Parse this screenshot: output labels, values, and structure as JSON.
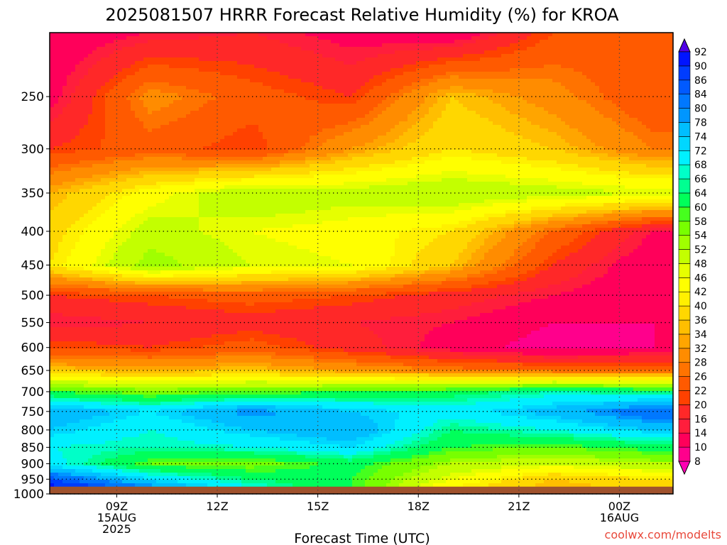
{
  "chart_data": {
    "type": "heatmap",
    "title": "2025081507 HRRR Forecast Relative Humidity (%) for KROA",
    "xlabel": "Forecast Time (UTC)",
    "ylabel": "",
    "credit": "coolwx.com/modelts",
    "x_unit": "hours UTC, 15AUG2025",
    "xlim": [
      7,
      25.6
    ],
    "y_scale": "log",
    "ylim": [
      1000,
      200
    ],
    "y_ticks": [
      250,
      300,
      350,
      400,
      450,
      500,
      550,
      600,
      650,
      700,
      750,
      800,
      850,
      900,
      950,
      1000
    ],
    "x_ticks": [
      {
        "hour": 9,
        "lines": [
          "09Z",
          "15AUG",
          "2025"
        ]
      },
      {
        "hour": 12,
        "lines": [
          "12Z"
        ]
      },
      {
        "hour": 15,
        "lines": [
          "15Z"
        ]
      },
      {
        "hour": 18,
        "lines": [
          "18Z"
        ]
      },
      {
        "hour": 21,
        "lines": [
          "21Z"
        ]
      },
      {
        "hour": 24,
        "lines": [
          "00Z",
          "16AUG"
        ]
      }
    ],
    "grid": true,
    "ground_below_hpa": 975,
    "ground_color": "#a0522d",
    "colorbar": {
      "placement": "right",
      "levels": [
        8,
        10,
        14,
        16,
        20,
        22,
        26,
        28,
        32,
        34,
        36,
        40,
        42,
        46,
        48,
        52,
        54,
        58,
        60,
        64,
        66,
        68,
        72,
        74,
        78,
        80,
        84,
        86,
        90,
        92
      ],
      "colors": [
        "#ff00b4",
        "#ff008c",
        "#ff005a",
        "#ff1e3c",
        "#ff2828",
        "#ff4100",
        "#ff5a00",
        "#ff7300",
        "#ff8c00",
        "#ffa500",
        "#ffbe00",
        "#ffd700",
        "#fff000",
        "#ffff00",
        "#e6ff00",
        "#c3ff00",
        "#a0ff00",
        "#78ff00",
        "#46ff1e",
        "#00ff5a",
        "#00ff91",
        "#00ffc8",
        "#00f0ff",
        "#00d7ff",
        "#00beff",
        "#0096ff",
        "#0078ff",
        "#005aff",
        "#003cff",
        "#0014ff",
        "#5000e6"
      ]
    },
    "rh_profiles": {
      "hours": [
        7,
        10,
        13,
        16,
        19,
        22,
        25
      ],
      "pressures": [
        200,
        250,
        300,
        350,
        400,
        450,
        500,
        550,
        600,
        650,
        700,
        750,
        800,
        850,
        900,
        950,
        975
      ],
      "rh": [
        [
          10,
          14,
          16,
          12,
          10,
          22,
          26
        ],
        [
          12,
          30,
          24,
          20,
          36,
          30,
          22
        ],
        [
          20,
          24,
          20,
          32,
          40,
          36,
          28
        ],
        [
          34,
          44,
          52,
          50,
          52,
          50,
          48
        ],
        [
          38,
          50,
          46,
          44,
          40,
          26,
          14
        ],
        [
          40,
          54,
          48,
          46,
          36,
          20,
          10
        ],
        [
          20,
          22,
          24,
          22,
          18,
          14,
          10
        ],
        [
          14,
          16,
          18,
          16,
          14,
          10,
          10
        ],
        [
          22,
          20,
          24,
          18,
          12,
          8,
          10
        ],
        [
          36,
          34,
          36,
          32,
          28,
          26,
          26
        ],
        [
          60,
          56,
          58,
          60,
          62,
          66,
          64
        ],
        [
          78,
          72,
          80,
          74,
          70,
          76,
          84
        ],
        [
          74,
          68,
          74,
          78,
          64,
          68,
          74
        ],
        [
          68,
          66,
          68,
          72,
          60,
          58,
          62
        ],
        [
          70,
          58,
          56,
          62,
          52,
          48,
          52
        ],
        [
          86,
          72,
          64,
          60,
          46,
          36,
          40
        ],
        [
          92,
          80,
          68,
          60,
          42,
          34,
          38
        ]
      ]
    }
  }
}
